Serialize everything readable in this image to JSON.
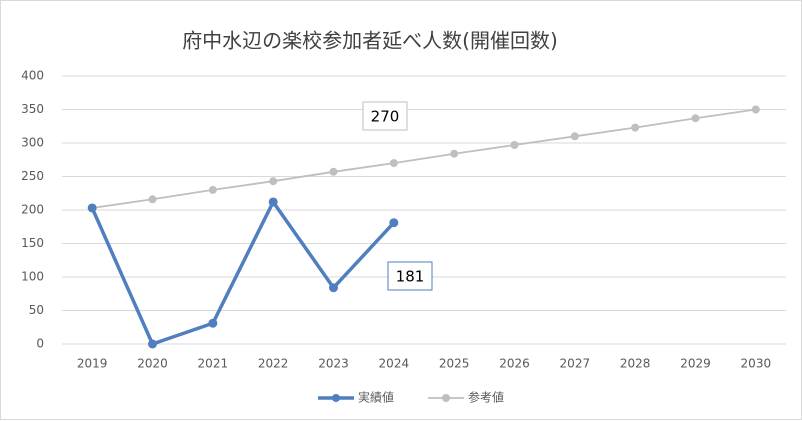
{
  "chart_data": {
    "type": "line",
    "title": "府中水辺の楽校参加者延べ人数(開催回数)",
    "categories": [
      "2019",
      "2020",
      "2021",
      "2022",
      "2023",
      "2024",
      "2025",
      "2026",
      "2027",
      "2028",
      "2029",
      "2030"
    ],
    "series": [
      {
        "name": "実績値",
        "color": "#4f7fbf",
        "values": [
          203,
          0,
          31,
          212,
          84,
          181,
          null,
          null,
          null,
          null,
          null,
          null
        ]
      },
      {
        "name": "参考値",
        "color": "#bfbfbf",
        "values": [
          203,
          216,
          230,
          243,
          257,
          270,
          284,
          297,
          310,
          323,
          337,
          350
        ]
      }
    ],
    "annotations": [
      "270",
      "181"
    ],
    "ylim": [
      0,
      400
    ],
    "yticks": [
      0,
      50,
      100,
      150,
      200,
      250,
      300,
      350,
      400
    ],
    "grid": true,
    "legend": "bottom"
  }
}
